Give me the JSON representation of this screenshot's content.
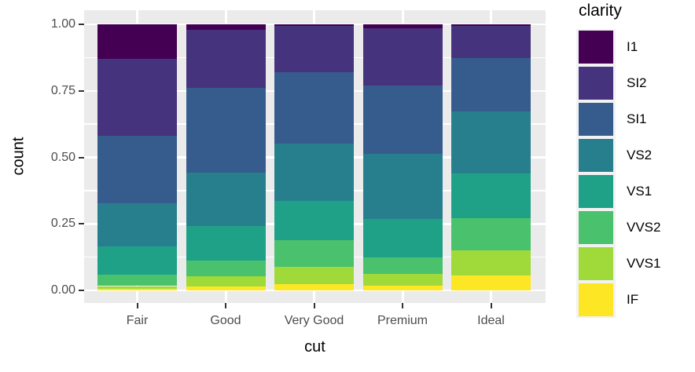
{
  "chart_data": {
    "type": "bar",
    "stacking": "fill",
    "title": "",
    "xlabel": "cut",
    "ylabel": "count",
    "categories": [
      "Fair",
      "Good",
      "Very Good",
      "Premium",
      "Ideal"
    ],
    "ylim": [
      0,
      1
    ],
    "y_major_ticks": [
      0.0,
      0.25,
      0.5,
      0.75,
      1.0
    ],
    "y_tick_labels": [
      "0.00",
      "0.25",
      "0.50",
      "0.75",
      "1.00"
    ],
    "y_minor_ticks": [
      0.125,
      0.375,
      0.625,
      0.875
    ],
    "grid": true,
    "legend_title": "clarity",
    "legend_position": "right",
    "stack_order_top_to_bottom": [
      "I1",
      "SI2",
      "SI1",
      "VS2",
      "VS1",
      "VVS2",
      "VVS1",
      "IF"
    ],
    "series": [
      {
        "name": "I1",
        "color": "#440154",
        "values": [
          0.1304,
          0.0196,
          0.007,
          0.0149,
          0.0068
        ]
      },
      {
        "name": "SI2",
        "color": "#46337E",
        "values": [
          0.2894,
          0.2203,
          0.1738,
          0.2138,
          0.1206
        ]
      },
      {
        "name": "SI1",
        "color": "#365C8D",
        "values": [
          0.2534,
          0.318,
          0.2682,
          0.2592,
          0.1987
        ]
      },
      {
        "name": "VS2",
        "color": "#277F8E",
        "values": [
          0.1621,
          0.1994,
          0.2144,
          0.2434,
          0.2353
        ]
      },
      {
        "name": "VS1",
        "color": "#1FA187",
        "values": [
          0.1056,
          0.1321,
          0.1469,
          0.1442,
          0.1665
        ]
      },
      {
        "name": "VVS2",
        "color": "#4AC16D",
        "values": [
          0.0429,
          0.0583,
          0.1022,
          0.0631,
          0.1209
        ]
      },
      {
        "name": "VVS1",
        "color": "#9FDA3A",
        "values": [
          0.0106,
          0.0379,
          0.0653,
          0.0447,
          0.095
        ]
      },
      {
        "name": "IF",
        "color": "#FDE725",
        "values": [
          0.0056,
          0.0145,
          0.0222,
          0.0167,
          0.0562
        ]
      }
    ],
    "colors": {
      "panel_background": "#EBEBEB",
      "grid": "#FFFFFF",
      "tick": "#333333",
      "tick_label": "#4D4D4D",
      "axis_title": "#000000",
      "legend_key_background": "#F2F2F2",
      "figure_background": "#FFFFFF"
    }
  }
}
